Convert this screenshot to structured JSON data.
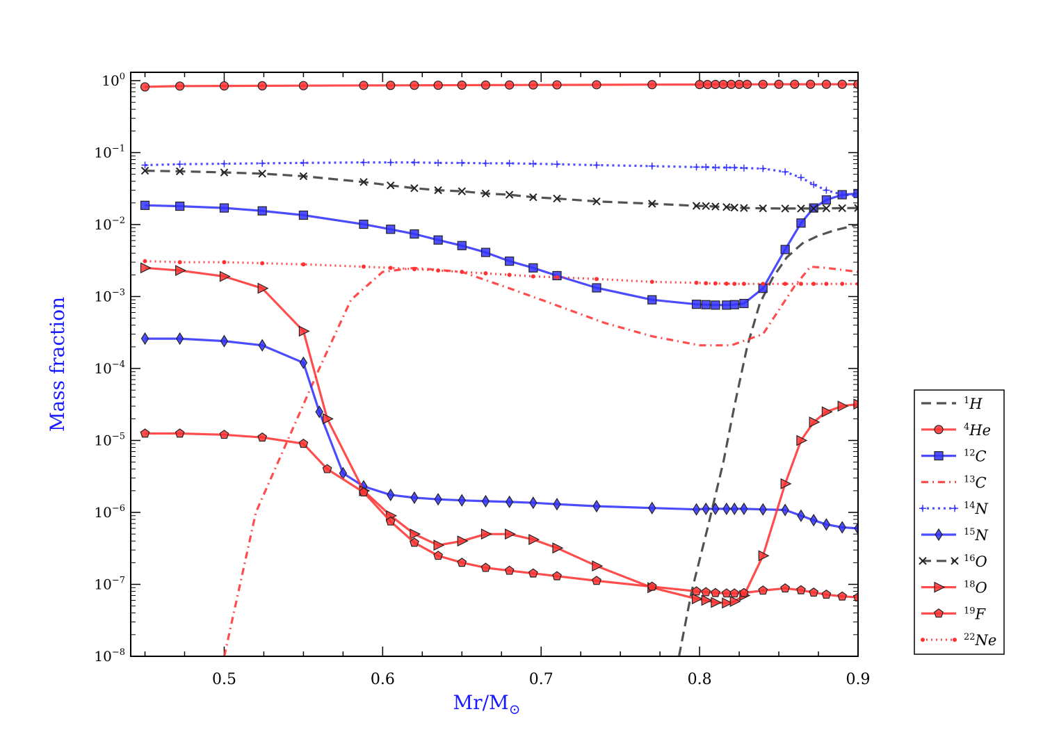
{
  "chart_data": {
    "type": "line",
    "xlabel": "Mr/M",
    "xlabel_symbol": "⊙",
    "ylabel": "Mass fraction",
    "xlim": [
      0.441,
      0.9
    ],
    "ylim": [
      1e-08,
      1.3
    ],
    "yscale": "log",
    "x_ticks": [
      0.5,
      0.6,
      0.7,
      0.8,
      0.9
    ],
    "x_tick_labels": [
      "0.5",
      "0.6",
      "0.7",
      "0.8",
      "0.9"
    ],
    "y_ticks": [
      {
        "value": 1,
        "base": "10",
        "exp": "0"
      },
      {
        "value": 0.1,
        "base": "10",
        "exp": "−1"
      },
      {
        "value": 0.01,
        "base": "10",
        "exp": "−2"
      },
      {
        "value": 0.001,
        "base": "10",
        "exp": "−3"
      },
      {
        "value": 0.0001,
        "base": "10",
        "exp": "−4"
      },
      {
        "value": 1e-05,
        "base": "10",
        "exp": "−5"
      },
      {
        "value": 1e-06,
        "base": "10",
        "exp": "−6"
      },
      {
        "value": 1e-07,
        "base": "10",
        "exp": "−7"
      },
      {
        "value": 1e-08,
        "base": "10",
        "exp": "−8"
      }
    ],
    "legend_position": "right, outside, lower",
    "series": [
      {
        "key": "h1",
        "label_sup": "1",
        "label_el": "H",
        "color": "#3a3a3a",
        "dash": "14,8",
        "marker": "none",
        "x": [
          0.787,
          0.795,
          0.805,
          0.815,
          0.822,
          0.83,
          0.838,
          0.846,
          0.855,
          0.865,
          0.875,
          0.885,
          0.9
        ],
        "y": [
          1e-08,
          8e-08,
          6e-07,
          5e-06,
          3e-05,
          0.0002,
          0.0008,
          0.0018,
          0.0035,
          0.0055,
          0.007,
          0.0083,
          0.01
        ]
      },
      {
        "key": "he4",
        "label_sup": "4",
        "label_el": "He",
        "color": "#ff3333",
        "dash": "",
        "marker": "circle",
        "x": [
          0.45,
          0.472,
          0.5,
          0.524,
          0.55,
          0.588,
          0.605,
          0.62,
          0.635,
          0.65,
          0.665,
          0.68,
          0.695,
          0.71,
          0.735,
          0.77,
          0.8,
          0.805,
          0.81,
          0.815,
          0.82,
          0.825,
          0.83,
          0.84,
          0.85,
          0.86,
          0.87,
          0.88,
          0.89,
          0.9
        ],
        "y": [
          0.82,
          0.84,
          0.845,
          0.848,
          0.852,
          0.858,
          0.86,
          0.862,
          0.864,
          0.866,
          0.868,
          0.87,
          0.872,
          0.874,
          0.876,
          0.88,
          0.883,
          0.884,
          0.885,
          0.886,
          0.887,
          0.888,
          0.888,
          0.889,
          0.89,
          0.89,
          0.89,
          0.89,
          0.89,
          0.89
        ]
      },
      {
        "key": "c12",
        "label_sup": "12",
        "label_el": "C",
        "color": "#3333ff",
        "dash": "",
        "marker": "square",
        "x": [
          0.45,
          0.472,
          0.5,
          0.524,
          0.55,
          0.588,
          0.605,
          0.62,
          0.635,
          0.65,
          0.665,
          0.68,
          0.695,
          0.71,
          0.735,
          0.77,
          0.798,
          0.804,
          0.81,
          0.817,
          0.822,
          0.828,
          0.84,
          0.854,
          0.864,
          0.872,
          0.88,
          0.89,
          0.9
        ],
        "y": [
          0.0185,
          0.018,
          0.017,
          0.0155,
          0.0135,
          0.0101,
          0.0086,
          0.0074,
          0.0061,
          0.0051,
          0.0041,
          0.0031,
          0.0025,
          0.00195,
          0.00132,
          0.0009,
          0.00078,
          0.00077,
          0.00076,
          0.00076,
          0.00077,
          0.0008,
          0.0013,
          0.0045,
          0.0105,
          0.017,
          0.022,
          0.026,
          0.027
        ]
      },
      {
        "key": "c13",
        "label_sup": "13",
        "label_el": "C",
        "color": "#ff3333",
        "dash": "10,6,2,6",
        "marker": "none",
        "x": [
          0.5,
          0.52,
          0.54,
          0.56,
          0.58,
          0.6,
          0.62,
          0.65,
          0.68,
          0.71,
          0.74,
          0.77,
          0.8,
          0.82,
          0.84,
          0.86,
          0.87,
          0.88,
          0.9
        ],
        "y": [
          1e-08,
          1e-06,
          1e-05,
          0.0001,
          0.0009,
          0.0022,
          0.0025,
          0.0022,
          0.0013,
          0.00075,
          0.00043,
          0.00028,
          0.00021,
          0.00021,
          0.0003,
          0.0014,
          0.0026,
          0.0025,
          0.0022
        ]
      },
      {
        "key": "n14",
        "label_sup": "14",
        "label_el": "N",
        "color": "#3333ff",
        "dash": "3,5",
        "marker": "plus",
        "x": [
          0.45,
          0.472,
          0.5,
          0.524,
          0.55,
          0.588,
          0.605,
          0.62,
          0.635,
          0.65,
          0.665,
          0.68,
          0.695,
          0.71,
          0.735,
          0.77,
          0.798,
          0.804,
          0.81,
          0.817,
          0.822,
          0.828,
          0.84,
          0.854,
          0.864,
          0.872,
          0.88,
          0.89,
          0.9
        ],
        "y": [
          0.067,
          0.069,
          0.07,
          0.071,
          0.072,
          0.073,
          0.073,
          0.073,
          0.072,
          0.072,
          0.071,
          0.071,
          0.07,
          0.069,
          0.067,
          0.065,
          0.063,
          0.063,
          0.062,
          0.062,
          0.062,
          0.061,
          0.06,
          0.054,
          0.045,
          0.036,
          0.03,
          0.026,
          0.025
        ]
      },
      {
        "key": "n15",
        "label_sup": "15",
        "label_el": "N",
        "color": "#3333ff",
        "dash": "",
        "marker": "diamond",
        "x": [
          0.45,
          0.472,
          0.5,
          0.524,
          0.55,
          0.56,
          0.575,
          0.588,
          0.605,
          0.62,
          0.635,
          0.65,
          0.665,
          0.68,
          0.695,
          0.71,
          0.735,
          0.77,
          0.798,
          0.804,
          0.81,
          0.817,
          0.822,
          0.828,
          0.84,
          0.854,
          0.864,
          0.872,
          0.88,
          0.89,
          0.9
        ],
        "y": [
          0.00026,
          0.00026,
          0.00024,
          0.00021,
          0.00012,
          2.5e-05,
          3.5e-06,
          2.3e-06,
          1.75e-06,
          1.6e-06,
          1.52e-06,
          1.47e-06,
          1.43e-06,
          1.4e-06,
          1.36e-06,
          1.3e-06,
          1.22e-06,
          1.15e-06,
          1.1e-06,
          1.12e-06,
          1.12e-06,
          1.12e-06,
          1.12e-06,
          1.12e-06,
          1.1e-06,
          1.08e-06,
          9e-07,
          7.8e-07,
          6.8e-07,
          6.2e-07,
          6e-07
        ]
      },
      {
        "key": "o16",
        "label_sup": "16",
        "label_el": "O",
        "color": "#3a3a3a",
        "dash": "14,8",
        "marker": "x",
        "x": [
          0.45,
          0.472,
          0.5,
          0.524,
          0.55,
          0.588,
          0.605,
          0.62,
          0.635,
          0.65,
          0.665,
          0.68,
          0.695,
          0.71,
          0.735,
          0.77,
          0.798,
          0.804,
          0.81,
          0.817,
          0.822,
          0.828,
          0.84,
          0.854,
          0.864,
          0.872,
          0.88,
          0.89,
          0.9
        ],
        "y": [
          0.056,
          0.055,
          0.053,
          0.051,
          0.047,
          0.039,
          0.035,
          0.032,
          0.03,
          0.029,
          0.027,
          0.026,
          0.024,
          0.023,
          0.021,
          0.0195,
          0.0182,
          0.0181,
          0.0178,
          0.0175,
          0.0172,
          0.017,
          0.0168,
          0.0167,
          0.0167,
          0.0167,
          0.0168,
          0.0169,
          0.017
        ]
      },
      {
        "key": "o18",
        "label_sup": "18",
        "label_el": "O",
        "color": "#ff3333",
        "dash": "",
        "marker": "triangle",
        "x": [
          0.45,
          0.472,
          0.5,
          0.524,
          0.55,
          0.565,
          0.588,
          0.605,
          0.62,
          0.635,
          0.65,
          0.665,
          0.68,
          0.695,
          0.71,
          0.735,
          0.77,
          0.798,
          0.804,
          0.81,
          0.817,
          0.822,
          0.828,
          0.84,
          0.854,
          0.864,
          0.872,
          0.88,
          0.89,
          0.9
        ],
        "y": [
          0.0025,
          0.0023,
          0.0019,
          0.0013,
          0.00033,
          2e-05,
          2e-06,
          9e-07,
          5e-07,
          3.5e-07,
          4e-07,
          5e-07,
          5e-07,
          4.2e-07,
          3.2e-07,
          1.8e-07,
          9e-08,
          6.3e-08,
          6e-08,
          5.6e-08,
          5.5e-08,
          5.8e-08,
          7e-08,
          2.5e-07,
          2.5e-06,
          1e-05,
          1.8e-05,
          2.5e-05,
          3e-05,
          3.2e-05
        ]
      },
      {
        "key": "f19",
        "label_sup": "19",
        "label_el": "F",
        "color": "#ff3333",
        "dash": "",
        "marker": "pentagon",
        "x": [
          0.45,
          0.472,
          0.5,
          0.524,
          0.55,
          0.565,
          0.588,
          0.605,
          0.62,
          0.635,
          0.65,
          0.665,
          0.68,
          0.695,
          0.71,
          0.735,
          0.77,
          0.798,
          0.804,
          0.81,
          0.817,
          0.822,
          0.828,
          0.84,
          0.854,
          0.864,
          0.872,
          0.88,
          0.89,
          0.9
        ],
        "y": [
          1.25e-05,
          1.25e-05,
          1.2e-05,
          1.1e-05,
          9e-06,
          4e-06,
          1.9e-06,
          7.5e-07,
          3.8e-07,
          2.5e-07,
          2e-07,
          1.7e-07,
          1.55e-07,
          1.42e-07,
          1.3e-07,
          1.12e-07,
          9.3e-08,
          8e-08,
          7.8e-08,
          7.6e-08,
          7.5e-08,
          7.5e-08,
          7.6e-08,
          8.2e-08,
          8.8e-08,
          8.3e-08,
          7.7e-08,
          7.2e-08,
          6.8e-08,
          6.6e-08
        ]
      },
      {
        "key": "ne22",
        "label_sup": "22",
        "label_el": "Ne",
        "color": "#ff3333",
        "dash": "2,5",
        "marker": "dot",
        "x": [
          0.45,
          0.472,
          0.5,
          0.524,
          0.55,
          0.588,
          0.605,
          0.62,
          0.635,
          0.65,
          0.665,
          0.68,
          0.695,
          0.71,
          0.735,
          0.77,
          0.798,
          0.804,
          0.81,
          0.817,
          0.822,
          0.828,
          0.84,
          0.854,
          0.864,
          0.872,
          0.88,
          0.89,
          0.9
        ],
        "y": [
          0.0031,
          0.003,
          0.003,
          0.0029,
          0.0028,
          0.0026,
          0.0025,
          0.0024,
          0.0023,
          0.0022,
          0.0021,
          0.002,
          0.0019,
          0.00185,
          0.00175,
          0.0016,
          0.00155,
          0.00153,
          0.00152,
          0.00151,
          0.0015,
          0.0015,
          0.0015,
          0.0015,
          0.0015,
          0.0015,
          0.0015,
          0.0015,
          0.0015
        ]
      }
    ]
  }
}
